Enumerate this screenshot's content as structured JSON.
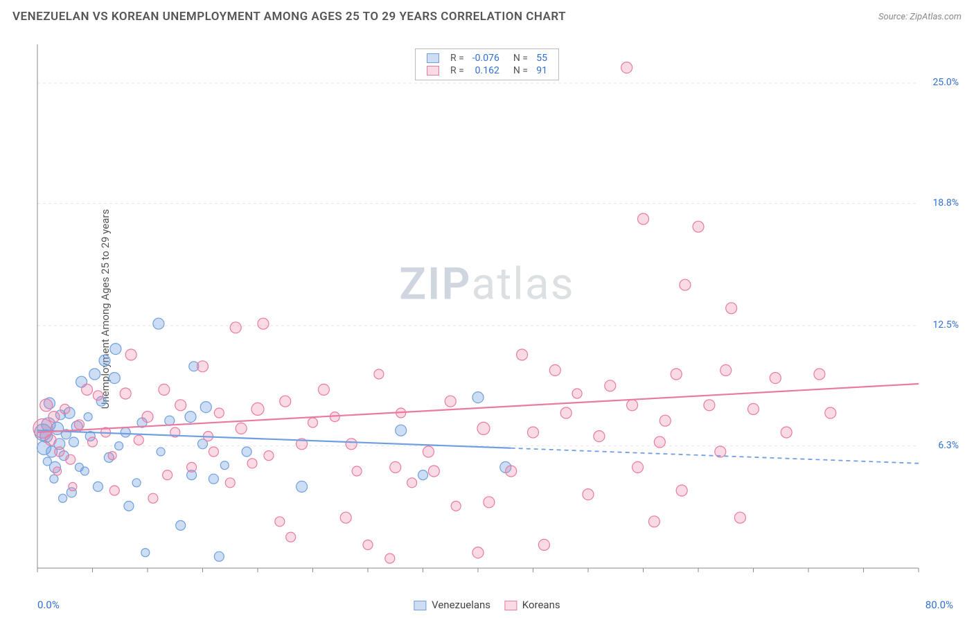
{
  "title": "VENEZUELAN VS KOREAN UNEMPLOYMENT AMONG AGES 25 TO 29 YEARS CORRELATION CHART",
  "source": "Source: ZipAtlas.com",
  "ylabel": "Unemployment Among Ages 25 to 29 years",
  "watermark_bold": "ZIP",
  "watermark_rest": "atlas",
  "chart": {
    "type": "scatter",
    "x_domain": [
      0,
      80
    ],
    "y_domain": [
      0,
      27
    ],
    "x_min_label": "0.0%",
    "x_max_label": "80.0%",
    "y_ticks": [
      {
        "v": 6.3,
        "label": "6.3%"
      },
      {
        "v": 12.5,
        "label": "12.5%"
      },
      {
        "v": 18.8,
        "label": "18.8%"
      },
      {
        "v": 25.0,
        "label": "25.0%"
      }
    ],
    "x_minor_ticks_every": 5,
    "grid_color": "#e5e5e5",
    "axis_color": "#888888",
    "background": "#ffffff",
    "series": [
      {
        "key": "venezuelans",
        "label": "Venezuelans",
        "color": "#6f9fe0",
        "fill": "rgba(111,159,224,0.35)",
        "R": "-0.076",
        "N": "55",
        "trend": {
          "x1": 0,
          "y1": 7.1,
          "x2": 80,
          "y2": 5.4,
          "solid_until_x": 43
        },
        "points": [
          [
            0.5,
            7.0,
            12
          ],
          [
            0.6,
            6.2,
            10
          ],
          [
            0.8,
            6.8,
            9
          ],
          [
            1.0,
            7.4,
            10
          ],
          [
            1.1,
            8.5,
            8
          ],
          [
            1.3,
            6.0,
            8
          ],
          [
            1.6,
            5.2,
            8
          ],
          [
            1.8,
            7.2,
            9
          ],
          [
            2.0,
            6.4,
            8
          ],
          [
            2.1,
            7.9,
            7
          ],
          [
            2.4,
            5.8,
            7
          ],
          [
            2.6,
            6.9,
            7
          ],
          [
            2.9,
            8.0,
            8
          ],
          [
            3.1,
            3.9,
            7
          ],
          [
            3.3,
            6.5,
            7
          ],
          [
            3.6,
            7.3,
            8
          ],
          [
            4.0,
            9.6,
            8
          ],
          [
            4.3,
            5.0,
            6
          ],
          [
            4.8,
            6.8,
            7
          ],
          [
            5.2,
            10.0,
            8
          ],
          [
            5.5,
            4.2,
            7
          ],
          [
            5.8,
            8.6,
            7
          ],
          [
            6.1,
            10.7,
            8
          ],
          [
            6.5,
            5.7,
            7
          ],
          [
            7.0,
            9.8,
            8
          ],
          [
            7.1,
            11.3,
            8
          ],
          [
            7.4,
            6.3,
            6
          ],
          [
            8.0,
            7.0,
            7
          ],
          [
            8.3,
            3.2,
            7
          ],
          [
            9.0,
            4.4,
            6
          ],
          [
            9.5,
            7.5,
            7
          ],
          [
            9.8,
            0.8,
            6
          ],
          [
            11.0,
            12.6,
            8
          ],
          [
            11.2,
            6.0,
            6
          ],
          [
            12.0,
            7.6,
            7
          ],
          [
            13.0,
            2.2,
            7
          ],
          [
            13.9,
            7.8,
            8
          ],
          [
            14.0,
            4.8,
            7
          ],
          [
            14.2,
            10.4,
            7
          ],
          [
            15.0,
            6.4,
            7
          ],
          [
            15.3,
            8.3,
            8
          ],
          [
            16.0,
            4.6,
            7
          ],
          [
            16.5,
            0.6,
            7
          ],
          [
            17.0,
            5.3,
            6
          ],
          [
            19.0,
            6.0,
            7
          ],
          [
            24.0,
            4.2,
            8
          ],
          [
            33.0,
            7.1,
            8
          ],
          [
            35.0,
            4.8,
            7
          ],
          [
            42.5,
            5.2,
            8
          ],
          [
            40.0,
            8.8,
            8
          ],
          [
            1.5,
            4.6,
            6
          ],
          [
            0.9,
            5.5,
            6
          ],
          [
            2.3,
            3.6,
            6
          ],
          [
            4.6,
            7.8,
            6
          ],
          [
            3.8,
            5.2,
            6
          ]
        ]
      },
      {
        "key": "koreans",
        "label": "Koreans",
        "color": "#ea7aa0",
        "fill": "rgba(234,122,160,0.28)",
        "R": "0.162",
        "N": "91",
        "trend": {
          "x1": 0,
          "y1": 7.0,
          "x2": 80,
          "y2": 9.5,
          "solid_until_x": 80
        },
        "points": [
          [
            0.5,
            7.2,
            14
          ],
          [
            0.8,
            8.4,
            9
          ],
          [
            1.2,
            6.6,
            8
          ],
          [
            1.5,
            7.8,
            8
          ],
          [
            2.0,
            6.0,
            7
          ],
          [
            2.5,
            8.2,
            7
          ],
          [
            3.0,
            5.6,
            7
          ],
          [
            3.8,
            7.4,
            7
          ],
          [
            4.5,
            9.2,
            8
          ],
          [
            5.0,
            6.5,
            7
          ],
          [
            5.5,
            8.9,
            7
          ],
          [
            6.2,
            7.0,
            7
          ],
          [
            7.0,
            4.0,
            7
          ],
          [
            8.0,
            9.0,
            8
          ],
          [
            8.5,
            11.0,
            8
          ],
          [
            9.2,
            6.6,
            7
          ],
          [
            10.0,
            7.8,
            8
          ],
          [
            10.5,
            3.6,
            7
          ],
          [
            11.5,
            9.2,
            8
          ],
          [
            12.5,
            7.0,
            7
          ],
          [
            13.0,
            8.4,
            8
          ],
          [
            14.0,
            5.2,
            7
          ],
          [
            15.0,
            10.4,
            8
          ],
          [
            15.5,
            6.8,
            7
          ],
          [
            16.5,
            8.0,
            7
          ],
          [
            17.5,
            4.4,
            7
          ],
          [
            18.0,
            12.4,
            8
          ],
          [
            18.5,
            7.2,
            8
          ],
          [
            20.0,
            8.2,
            9
          ],
          [
            20.5,
            12.6,
            8
          ],
          [
            21.0,
            5.8,
            7
          ],
          [
            22.0,
            2.4,
            7
          ],
          [
            22.5,
            8.6,
            8
          ],
          [
            23.0,
            1.6,
            7
          ],
          [
            24.0,
            6.4,
            8
          ],
          [
            25.0,
            7.5,
            7
          ],
          [
            26.0,
            9.2,
            8
          ],
          [
            28.0,
            2.6,
            8
          ],
          [
            28.5,
            6.4,
            8
          ],
          [
            29.0,
            5.0,
            7
          ],
          [
            30.0,
            1.2,
            7
          ],
          [
            32.0,
            0.5,
            7
          ],
          [
            32.5,
            5.2,
            8
          ],
          [
            33.0,
            8.0,
            7
          ],
          [
            34.0,
            4.4,
            7
          ],
          [
            35.5,
            6.0,
            8
          ],
          [
            36.0,
            5.0,
            8
          ],
          [
            37.5,
            8.6,
            8
          ],
          [
            40.0,
            0.8,
            8
          ],
          [
            40.5,
            7.2,
            9
          ],
          [
            41.0,
            3.4,
            8
          ],
          [
            43.0,
            5.0,
            8
          ],
          [
            44.0,
            11.0,
            8
          ],
          [
            46.0,
            1.2,
            8
          ],
          [
            47.0,
            10.2,
            8
          ],
          [
            48.0,
            8.0,
            8
          ],
          [
            50.0,
            3.8,
            8
          ],
          [
            51.0,
            6.8,
            8
          ],
          [
            52.0,
            9.4,
            8
          ],
          [
            53.5,
            25.8,
            8
          ],
          [
            54.0,
            8.4,
            8
          ],
          [
            54.5,
            5.2,
            8
          ],
          [
            55.0,
            18.0,
            8
          ],
          [
            56.0,
            2.4,
            8
          ],
          [
            56.5,
            6.5,
            8
          ],
          [
            58.0,
            10.0,
            8
          ],
          [
            58.5,
            4.0,
            8
          ],
          [
            58.8,
            14.6,
            8
          ],
          [
            60.0,
            17.6,
            8
          ],
          [
            61.0,
            8.4,
            8
          ],
          [
            62.0,
            6.0,
            8
          ],
          [
            62.5,
            10.2,
            8
          ],
          [
            63.0,
            13.4,
            8
          ],
          [
            63.8,
            2.6,
            8
          ],
          [
            65.0,
            8.2,
            8
          ],
          [
            67.0,
            9.8,
            8
          ],
          [
            71.0,
            10.0,
            8
          ],
          [
            72.0,
            8.0,
            8
          ],
          [
            1.8,
            5.0,
            6
          ],
          [
            3.2,
            4.2,
            6
          ],
          [
            6.8,
            5.8,
            6
          ],
          [
            11.8,
            4.8,
            7
          ],
          [
            16.0,
            6.0,
            7
          ],
          [
            19.5,
            5.4,
            7
          ],
          [
            27.0,
            7.8,
            7
          ],
          [
            31.0,
            10.0,
            7
          ],
          [
            38.0,
            3.2,
            7
          ],
          [
            45.0,
            7.0,
            8
          ],
          [
            49.0,
            9.0,
            7
          ],
          [
            57.0,
            7.6,
            8
          ],
          [
            68.0,
            7.0,
            8
          ]
        ]
      }
    ]
  },
  "legend_top": {
    "R_label": "R =",
    "N_label": "N ="
  },
  "colors": {
    "text": "#555555",
    "axis_label": "#2f6fd0",
    "grid": "#e5e5e5"
  }
}
